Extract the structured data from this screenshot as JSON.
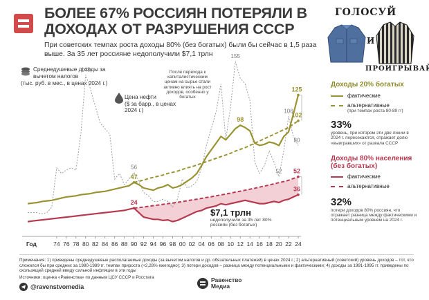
{
  "header": {
    "title": "БОЛЕЕ 67% РОССИЯН ПОТЕРЯЛИ В ДОХОДАХ ОТ РАЗРУШЕНИЯ СССР",
    "subtitle": "При советских темпах роста доходы 80% (без богатых) были бы сейчас в 1,5 раза выше. За 35 лет россияне недополучили $7,1 трлн"
  },
  "illustration": {
    "word_top": "ГОЛОСУЙ",
    "word_mid": "И",
    "word_bottom": "ПРОИГРЫВАЙ"
  },
  "axis_labels": {
    "y_income": "Среднедушевые доходы за вычетом налогов",
    "y_income_unit": "(тыс. руб. в мес., в ценах 2024 г.)",
    "oil": "Цена нефти",
    "oil_unit": "($ за барр., в ценах 2024 г.)",
    "x_title": "Год"
  },
  "annotations": {
    "market": "После перехода к капиталистическим ценам на сырье стали активно влиять на рост доходов, особенно у богатых",
    "gap_value": "$7,1 трлн",
    "gap_text": "недополучили за 35 лет 80% россиян (без богатых)"
  },
  "legend": {
    "rich": {
      "title": "Доходы 20% богатых",
      "actual": "фактические",
      "alt": "альтернативные",
      "alt_note": "(при темпах роста 80-89 гг)",
      "pct": "33%",
      "pct_text": "уровень, при котором эти две линии в 2024 г. пересекаются, отражает долю «выигравших» от развала СССР"
    },
    "poor": {
      "title": "Доходы 80% населения (без богатых)",
      "actual": "фактические",
      "alt": "альтернативные",
      "pct": "32%",
      "pct_text": "потери доходов 80% россиян, что отражает разница между фактическими и потенциальным уровнем на 2024 г."
    }
  },
  "notes": {
    "text": "Примечания: 1) приведены среднедушевые располагаемые доходы (за вычетом налогов и др. обязательных платежей) в ценах 2024 г.; 2) альтернативный (советский) уровень доходов – тот, что сложился бы при средних за 1980-1989 гг. темпах прироста (+2,28% ежегодно); 3) потери доходов – разница между потенциальными и фактическими; 4) доходы за 1991-1995 гг. приведены по скользящей средней ввиду сильной инфляции в эти годы",
    "source": "Источники: оценка «Равенства» по данным ЦСУ СССР и Росстата"
  },
  "footer": {
    "handle": "@ravenstvomedia",
    "brand_line1": "Равенство",
    "brand_line2": "Медиа"
  },
  "colors": {
    "red": "#d14b4b",
    "olive": "#9a9332",
    "maroon": "#b53a4f",
    "gap": "#f1c7cf",
    "oil": "#9c9c9c"
  },
  "chart_data": {
    "type": "line",
    "x": [
      1968,
      1969,
      1970,
      1971,
      1972,
      1973,
      1974,
      1975,
      1976,
      1977,
      1978,
      1979,
      1980,
      1981,
      1982,
      1983,
      1984,
      1985,
      1986,
      1987,
      1988,
      1989,
      1990,
      1991,
      1992,
      1993,
      1994,
      1995,
      1996,
      1997,
      1998,
      1999,
      2000,
      2001,
      2002,
      2003,
      2004,
      2005,
      2006,
      2007,
      2008,
      2009,
      2010,
      2011,
      2012,
      2013,
      2014,
      2015,
      2016,
      2017,
      2018,
      2019,
      2020,
      2021,
      2022,
      2023,
      2024
    ],
    "x_ticks": [
      "74",
      "76",
      "78",
      "80",
      "82",
      "84",
      "86",
      "88",
      "90",
      "92",
      "94",
      "96",
      "98",
      "00",
      "02",
      "04",
      "06",
      "08",
      "10",
      "12",
      "14",
      "16",
      "18",
      "20",
      "22",
      "24"
    ],
    "xlabel": "Год",
    "ylim": [
      0,
      140
    ],
    "series": [
      {
        "name": "Доходы 20% богатых — фактические",
        "color": "#9a9332",
        "values": [
          28,
          28.5,
          29,
          30,
          30.5,
          31,
          32,
          33,
          34,
          34.5,
          35,
          36,
          36.5,
          37,
          38,
          38.5,
          39,
          40,
          41,
          42,
          43,
          44,
          47,
          45,
          42,
          41,
          40,
          42,
          43,
          45,
          42,
          43,
          45,
          48,
          51,
          55,
          62,
          70,
          76,
          82,
          88,
          85,
          90,
          95,
          98,
          96,
          93,
          82,
          80,
          81,
          83,
          82,
          80,
          88,
          92,
          108,
          125
        ]
      },
      {
        "name": "Доходы 20% богатых — альтернативные",
        "color": "#9a9332",
        "values": [
          null,
          null,
          null,
          null,
          null,
          null,
          null,
          null,
          null,
          null,
          null,
          null,
          null,
          null,
          null,
          null,
          null,
          null,
          null,
          null,
          null,
          null,
          47,
          48,
          49,
          50.5,
          51.5,
          52.5,
          53.5,
          55,
          56,
          57,
          58.5,
          60,
          61,
          62.5,
          64,
          65.5,
          67,
          68.5,
          70,
          71.5,
          73,
          75,
          76.5,
          78,
          80,
          82,
          84,
          86,
          88,
          90,
          92,
          94,
          96,
          99,
          102
        ]
      },
      {
        "name": "Доходы 80% населения — фактические",
        "color": "#b53a4f",
        "values": [
          12,
          12.5,
          13,
          13.5,
          14,
          14.5,
          15,
          15.5,
          16,
          16.5,
          17,
          17.5,
          18,
          18.5,
          19,
          19.5,
          20,
          20.5,
          21,
          21.5,
          22,
          23,
          24,
          20,
          16,
          15,
          14,
          14,
          13,
          13.5,
          12,
          13,
          15,
          17,
          19,
          21,
          22,
          24,
          25,
          26,
          28,
          27,
          28,
          29,
          30,
          31,
          30,
          29,
          28,
          28,
          29,
          30,
          29,
          31,
          32,
          34,
          36
        ]
      },
      {
        "name": "Доходы 80% населения — альтернативные",
        "color": "#b53a4f",
        "values": [
          null,
          null,
          null,
          null,
          null,
          null,
          null,
          null,
          null,
          null,
          null,
          null,
          null,
          null,
          null,
          null,
          null,
          null,
          null,
          null,
          null,
          null,
          24,
          24.5,
          25,
          25.6,
          26.2,
          26.8,
          27.4,
          28,
          28.6,
          29.2,
          29.9,
          30.6,
          31.3,
          32,
          32.7,
          33.5,
          34.2,
          35,
          35.8,
          36.6,
          37.4,
          38.3,
          39.1,
          40,
          40.9,
          41.8,
          42.8,
          43.7,
          44.7,
          45.7,
          46.8,
          47.8,
          48.9,
          50.5,
          52
        ]
      },
      {
        "name": "Цена нефти",
        "color": "#9c9c9c",
        "values": [
          20,
          20,
          20,
          19,
          20,
          25,
          60,
          55,
          58,
          60,
          58,
          90,
          143,
          130,
          115,
          100,
          95,
          90,
          50,
          55,
          45,
          50,
          56,
          48,
          38,
          35,
          30,
          30,
          32,
          30,
          25,
          32,
          50,
          42,
          44,
          48,
          60,
          80,
          95,
          110,
          135,
          85,
          115,
          155,
          140,
          135,
          120,
          65,
          55,
          62,
          75,
          65,
          52,
          75,
          106,
          88,
          80
        ]
      }
    ],
    "data_labels": [
      {
        "text": "47",
        "x": 1990,
        "y": 47,
        "color": "#9a9332"
      },
      {
        "text": "98",
        "x": 2012,
        "y": 98,
        "color": "#9a9332"
      },
      {
        "text": "125",
        "x": 2024,
        "y": 125,
        "color": "#9a9332"
      },
      {
        "text": "102",
        "x": 2024,
        "y": 102,
        "color": "#9a9332"
      },
      {
        "text": "24",
        "x": 1990,
        "y": 24,
        "color": "#b53a4f"
      },
      {
        "text": "52",
        "x": 2024,
        "y": 52,
        "color": "#b53a4f"
      },
      {
        "text": "36",
        "x": 2024,
        "y": 36,
        "color": "#b53a4f"
      },
      {
        "text": "143",
        "x": 1980,
        "y": 143,
        "color": "#777777"
      },
      {
        "text": "56",
        "x": 1990,
        "y": 56,
        "color": "#777777"
      },
      {
        "text": "155",
        "x": 2011,
        "y": 155,
        "color": "#777777"
      },
      {
        "text": "52",
        "x": 2020,
        "y": 52,
        "color": "#777777"
      },
      {
        "text": "106",
        "x": 2022,
        "y": 106,
        "color": "#777777"
      },
      {
        "text": "80",
        "x": 2024,
        "y": 80,
        "color": "#777777"
      }
    ]
  }
}
